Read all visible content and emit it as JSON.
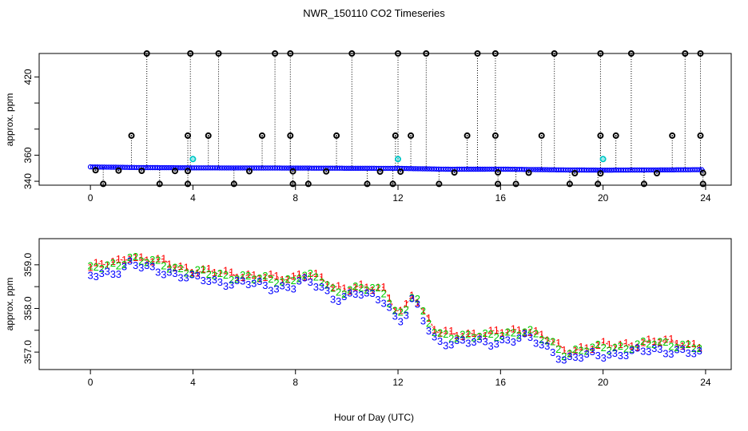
{
  "figure": {
    "title": "NWR_150110  CO2 Timeseries",
    "xlabel": "Hour of Day (UTC)"
  },
  "colors": {
    "background": "#ffffff",
    "axis": "#000000",
    "ambient_main": "#0000ff",
    "cal_high": "#000000",
    "cal_ref": "#00c8c8",
    "trace_1": "#ff0000",
    "trace_2": "#00cc00",
    "trace_3": "#0000ff"
  },
  "chart_data": [
    {
      "type": "scatter",
      "title": "",
      "xlabel": "",
      "ylabel": "approx. ppm",
      "xlim": [
        -2,
        25
      ],
      "ylim": [
        337,
        438
      ],
      "x_ticks": [
        0,
        4,
        8,
        12,
        16,
        20,
        24
      ],
      "y_ticks": [
        340,
        360,
        380,
        400,
        420
      ],
      "y_tick_labels": [
        "340",
        "360",
        "",
        "",
        "420"
      ],
      "baseline": [
        [
          0,
          351.0
        ],
        [
          2,
          350.5
        ],
        [
          4,
          350.3
        ],
        [
          8,
          350.1
        ],
        [
          12,
          349.9
        ],
        [
          14,
          349.2
        ],
        [
          16,
          349.3
        ],
        [
          18,
          348.8
        ],
        [
          20,
          348.5
        ],
        [
          24,
          348.9
        ]
      ],
      "high_cal_x": [
        2.2,
        3.9,
        5.0,
        7.2,
        7.8,
        10.2,
        12.0,
        13.1,
        15.1,
        15.8,
        18.1,
        19.9,
        21.1,
        23.2,
        23.8
      ],
      "high_cal_y": 438,
      "mid_cal_x": [
        1.6,
        3.8,
        4.6,
        6.7,
        7.8,
        9.6,
        11.9,
        12.5,
        14.7,
        15.8,
        17.6,
        19.9,
        20.5,
        22.7,
        23.8
      ],
      "mid_cal_y": 375,
      "low_cal_x": [
        0.5,
        2.7,
        3.8,
        5.6,
        7.9,
        8.5,
        10.8,
        11.8,
        13.6,
        15.9,
        16.6,
        18.7,
        19.8,
        21.6,
        23.9
      ],
      "low_cal_y": 338,
      "near_x": [
        0.2,
        1.1,
        2.0,
        3.3,
        3.8,
        6.2,
        7.9,
        9.2,
        11.3,
        12.1,
        14.2,
        15.9,
        17.1,
        18.9,
        19.9,
        22.1,
        23.9
      ],
      "cyan_x": [
        4.0,
        12.0,
        20.0
      ],
      "cyan_y": 357
    },
    {
      "type": "scatter",
      "title": "",
      "xlabel": "",
      "ylabel": "approx. ppm",
      "xlim": [
        -2,
        25
      ],
      "ylim": [
        356.6,
        359.6
      ],
      "x_ticks": [
        0,
        4,
        8,
        12,
        16,
        20,
        24
      ],
      "y_ticks": [
        357.0,
        357.5,
        358.0,
        358.5,
        359.0
      ],
      "y_tick_labels": [
        "357.0",
        "",
        "358.0",
        "",
        "359.0"
      ],
      "series": [
        {
          "name": "1",
          "offset": 0.08
        },
        {
          "name": "2",
          "offset": 0.03
        },
        {
          "name": "3",
          "offset": -0.12
        }
      ],
      "trend": [
        [
          0,
          358.85
        ],
        [
          1.2,
          359.0
        ],
        [
          1.5,
          359.15
        ],
        [
          2.0,
          359.05
        ],
        [
          3.0,
          358.95
        ],
        [
          4.0,
          358.8
        ],
        [
          5.0,
          358.72
        ],
        [
          6.0,
          358.7
        ],
        [
          7.0,
          358.6
        ],
        [
          7.9,
          358.62
        ],
        [
          8.2,
          358.75
        ],
        [
          9.0,
          358.6
        ],
        [
          9.5,
          358.35
        ],
        [
          10.5,
          358.45
        ],
        [
          11.5,
          358.3
        ],
        [
          11.9,
          357.9
        ],
        [
          12.2,
          357.85
        ],
        [
          12.6,
          358.35
        ],
        [
          13.0,
          357.8
        ],
        [
          13.5,
          357.35
        ],
        [
          14.5,
          357.35
        ],
        [
          15.5,
          357.3
        ],
        [
          16.2,
          357.4
        ],
        [
          17.0,
          357.45
        ],
        [
          18.0,
          357.15
        ],
        [
          18.5,
          356.95
        ],
        [
          19.0,
          357.0
        ],
        [
          20.0,
          357.05
        ],
        [
          21.0,
          357.1
        ],
        [
          22.0,
          357.15
        ],
        [
          23.0,
          357.15
        ],
        [
          23.8,
          357.05
        ]
      ],
      "step": 0.22,
      "glyph_text": [
        "1",
        "2",
        "3"
      ]
    }
  ]
}
